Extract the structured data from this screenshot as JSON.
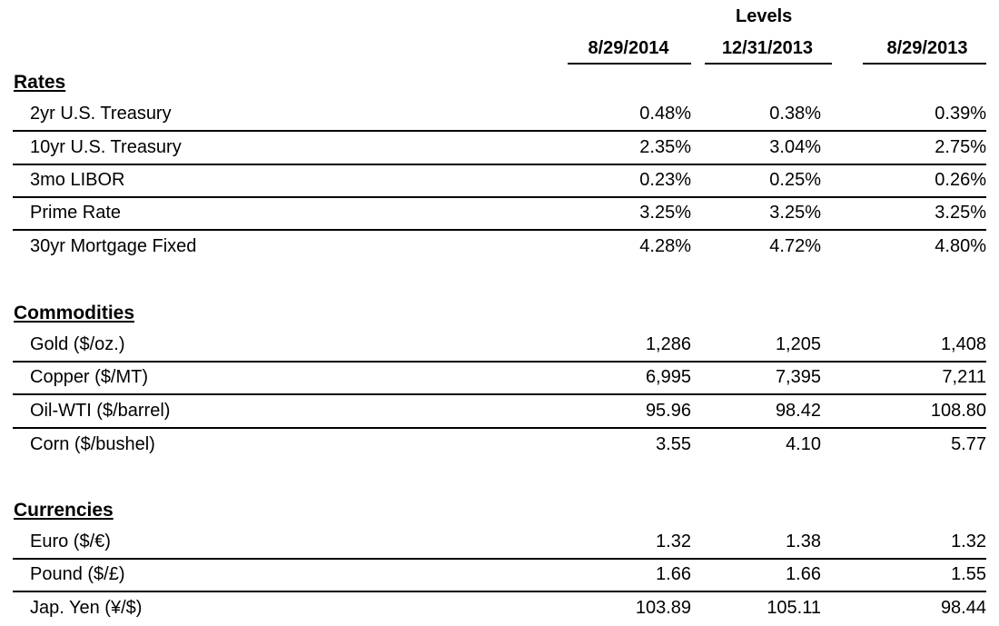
{
  "header": {
    "group_label": "Levels",
    "columns": [
      "8/29/2014",
      "12/31/2013",
      "8/29/2013"
    ]
  },
  "sections": [
    {
      "title": "Rates",
      "rows": [
        {
          "label": "2yr U.S. Treasury",
          "values": [
            "0.48%",
            "0.38%",
            "0.39%"
          ]
        },
        {
          "label": "10yr U.S. Treasury",
          "values": [
            "2.35%",
            "3.04%",
            "2.75%"
          ]
        },
        {
          "label": "3mo LIBOR",
          "values": [
            "0.23%",
            "0.25%",
            "0.26%"
          ]
        },
        {
          "label": "Prime Rate",
          "values": [
            "3.25%",
            "3.25%",
            "3.25%"
          ]
        },
        {
          "label": "30yr Mortgage Fixed",
          "values": [
            "4.28%",
            "4.72%",
            "4.80%"
          ]
        }
      ]
    },
    {
      "title": "Commodities",
      "rows": [
        {
          "label": "Gold ($/oz.)",
          "values": [
            "1,286",
            "1,205",
            "1,408"
          ]
        },
        {
          "label": "Copper ($/MT)",
          "values": [
            "6,995",
            "7,395",
            "7,211"
          ]
        },
        {
          "label": "Oil-WTI ($/barrel)",
          "values": [
            "95.96",
            "98.42",
            "108.80"
          ]
        },
        {
          "label": "Corn ($/bushel)",
          "values": [
            "3.55",
            "4.10",
            "5.77"
          ]
        }
      ]
    },
    {
      "title": "Currencies",
      "rows": [
        {
          "label": "Euro ($/€)",
          "values": [
            "1.32",
            "1.38",
            "1.32"
          ]
        },
        {
          "label": "Pound ($/£)",
          "values": [
            "1.66",
            "1.66",
            "1.55"
          ]
        },
        {
          "label": "Jap. Yen (¥/$)",
          "values": [
            "103.89",
            "105.11",
            "98.44"
          ]
        }
      ]
    }
  ]
}
